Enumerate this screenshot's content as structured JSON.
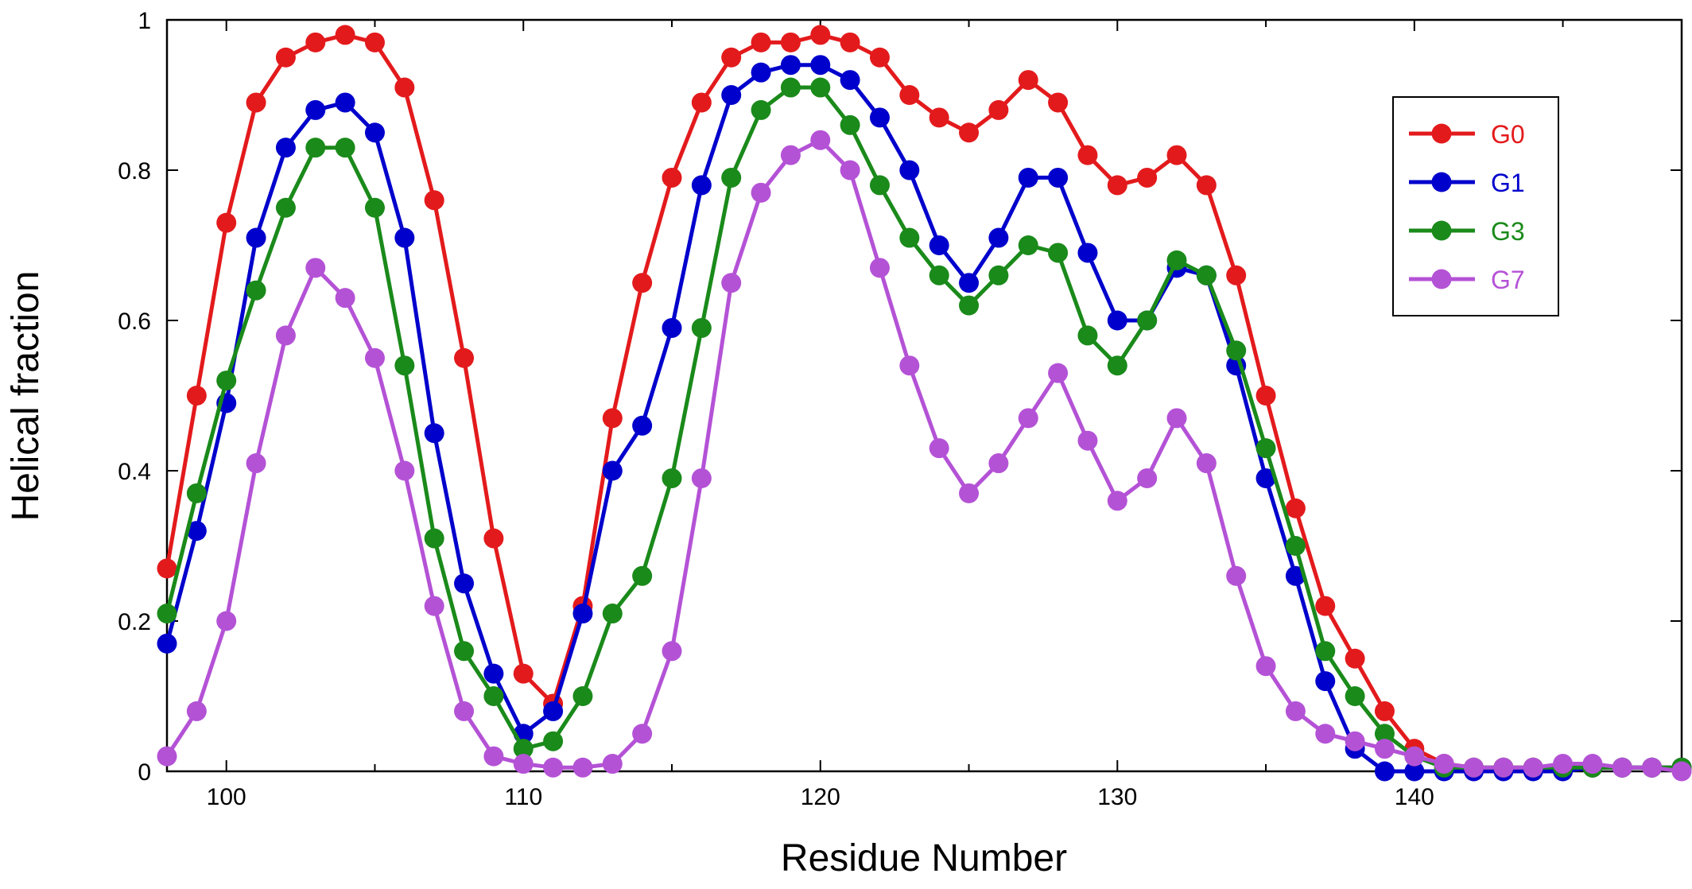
{
  "chart_data": {
    "type": "line",
    "title": "",
    "xlabel": "Residue Number",
    "ylabel": "Helical fraction",
    "xlim": [
      98,
      149
    ],
    "ylim": [
      0,
      1
    ],
    "xticks": [
      100,
      110,
      120,
      130,
      140
    ],
    "xtick_labels": [
      "100",
      "110",
      "120",
      "130",
      "140"
    ],
    "yticks": [
      0,
      0.2,
      0.4,
      0.6,
      0.8,
      1
    ],
    "ytick_labels": [
      "0",
      "0.2",
      "0.4",
      "0.6",
      "0.8",
      "1"
    ],
    "grid": false,
    "legend_position": "top-right",
    "x": [
      98,
      99,
      100,
      101,
      102,
      103,
      104,
      105,
      106,
      107,
      108,
      109,
      110,
      111,
      112,
      113,
      114,
      115,
      116,
      117,
      118,
      119,
      120,
      121,
      122,
      123,
      124,
      125,
      126,
      127,
      128,
      129,
      130,
      131,
      132,
      133,
      134,
      135,
      136,
      137,
      138,
      139,
      140,
      141,
      142,
      143,
      144,
      145,
      146,
      147,
      148,
      149
    ],
    "series": [
      {
        "name": "G0",
        "color": "#e31a1c",
        "values": [
          0.27,
          0.5,
          0.73,
          0.89,
          0.95,
          0.97,
          0.98,
          0.97,
          0.91,
          0.76,
          0.55,
          0.31,
          0.13,
          0.09,
          0.22,
          0.47,
          0.65,
          0.79,
          0.89,
          0.95,
          0.97,
          0.97,
          0.98,
          0.97,
          0.95,
          0.9,
          0.87,
          0.85,
          0.88,
          0.92,
          0.89,
          0.82,
          0.78,
          0.79,
          0.82,
          0.78,
          0.66,
          0.5,
          0.35,
          0.22,
          0.15,
          0.08,
          0.03,
          0.01,
          0.005,
          0.005,
          0.005,
          0.005,
          0.005,
          0.005,
          0.005,
          0.005
        ]
      },
      {
        "name": "G1",
        "color": "#0000cc",
        "values": [
          0.17,
          0.32,
          0.49,
          0.71,
          0.83,
          0.88,
          0.89,
          0.85,
          0.71,
          0.45,
          0.25,
          0.13,
          0.05,
          0.08,
          0.21,
          0.4,
          0.46,
          0.59,
          0.78,
          0.9,
          0.93,
          0.94,
          0.94,
          0.92,
          0.87,
          0.8,
          0.7,
          0.65,
          0.71,
          0.79,
          0.79,
          0.69,
          0.6,
          0.6,
          0.67,
          0.66,
          0.54,
          0.39,
          0.26,
          0.12,
          0.03,
          0.0,
          0.0,
          0.0,
          0.0,
          0.0,
          0.0,
          0.0,
          0.005,
          0.005,
          0.005,
          0.005
        ]
      },
      {
        "name": "G3",
        "color": "#1a8a1a",
        "values": [
          0.21,
          0.37,
          0.52,
          0.64,
          0.75,
          0.83,
          0.83,
          0.75,
          0.54,
          0.31,
          0.16,
          0.1,
          0.03,
          0.04,
          0.1,
          0.21,
          0.26,
          0.39,
          0.59,
          0.79,
          0.88,
          0.91,
          0.91,
          0.86,
          0.78,
          0.71,
          0.66,
          0.62,
          0.66,
          0.7,
          0.69,
          0.58,
          0.54,
          0.6,
          0.68,
          0.66,
          0.56,
          0.43,
          0.3,
          0.16,
          0.1,
          0.05,
          0.02,
          0.005,
          0.005,
          0.005,
          0.005,
          0.005,
          0.005,
          0.005,
          0.005,
          0.005
        ]
      },
      {
        "name": "G7",
        "color": "#b452d6",
        "values": [
          0.02,
          0.08,
          0.2,
          0.41,
          0.58,
          0.67,
          0.63,
          0.55,
          0.4,
          0.22,
          0.08,
          0.02,
          0.01,
          0.005,
          0.005,
          0.01,
          0.05,
          0.16,
          0.39,
          0.65,
          0.77,
          0.82,
          0.84,
          0.8,
          0.67,
          0.54,
          0.43,
          0.37,
          0.41,
          0.47,
          0.53,
          0.44,
          0.36,
          0.39,
          0.47,
          0.41,
          0.26,
          0.14,
          0.08,
          0.05,
          0.04,
          0.03,
          0.02,
          0.01,
          0.005,
          0.005,
          0.005,
          0.01,
          0.01,
          0.005,
          0.005,
          0.0
        ]
      }
    ]
  }
}
